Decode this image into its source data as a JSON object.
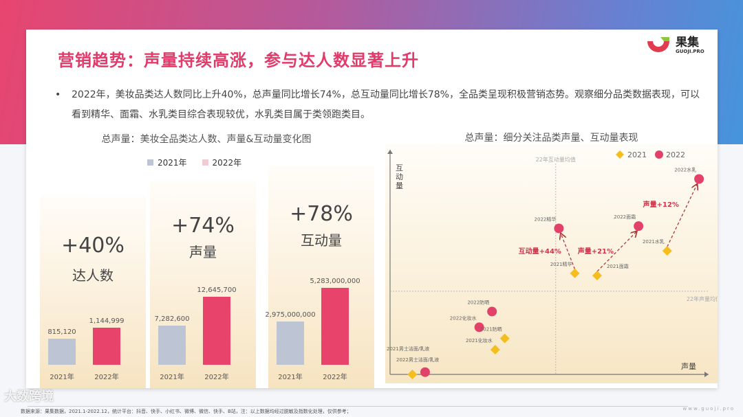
{
  "title": "营销趋势：声量持续高涨，参与达人数显著上升",
  "logo": {
    "name": "果集",
    "sub": "GUOJI.PRO",
    "colors": [
      "#e23b4f",
      "#8cc63f"
    ]
  },
  "bullet": "2022年，美妆品类达人数同比上升40%，总声量同比增长74%，总互动量同比增长78%，全品类呈现积极营销态势。观察细分品类数据表现，可以看到精华、面霜、水乳类目综合表现较优，水乳类目属于类领跑类目。",
  "chart_data": [
    {
      "type": "bar",
      "title": "总声量：美妆全品类达人数、声量&互动量变化图",
      "legend": [
        {
          "name": "2021年",
          "color": "#bdc5d4"
        },
        {
          "name": "2022年",
          "color": "#e8446b"
        }
      ],
      "panels": [
        {
          "growth": "+40%",
          "metric": "达人数",
          "categories": [
            "2021年",
            "2022年"
          ],
          "values": [
            815120,
            1144999
          ],
          "labels": [
            "815,120",
            "1,144,999"
          ]
        },
        {
          "growth": "+74%",
          "metric": "声量",
          "categories": [
            "2021年",
            "2022年"
          ],
          "values": [
            7282600,
            12645700
          ],
          "labels": [
            "7,282,600",
            "12,645,700"
          ]
        },
        {
          "growth": "+78%",
          "metric": "互动量",
          "categories": [
            "2021年",
            "2022年"
          ],
          "values": [
            2975000000,
            5283000000
          ],
          "labels": [
            "2,975,000,000",
            "5,283,000,000"
          ]
        }
      ]
    },
    {
      "type": "scatter",
      "title": "总声量：细分关注品类声量、互动量表现",
      "xlabel": "声量",
      "ylabel": "互动量",
      "xlim": [
        0,
        100
      ],
      "ylim": [
        0,
        100
      ],
      "legend": [
        {
          "name": "2021",
          "marker": "diamond",
          "color": "#f5be1e"
        },
        {
          "name": "2022",
          "marker": "circle",
          "color": "#e2426a"
        }
      ],
      "reference_lines": {
        "x": {
          "value": 52,
          "label": "22年互动量均值"
        },
        "y": {
          "value": 37,
          "label": "22年声量均值"
        }
      },
      "points": [
        {
          "label": "2022精华",
          "year": "2022",
          "x": 53,
          "y": 65
        },
        {
          "label": "2021精华",
          "year": "2021",
          "x": 58,
          "y": 45
        },
        {
          "label": "2021面霜",
          "year": "2021",
          "x": 65,
          "y": 44
        },
        {
          "label": "2022面霜",
          "year": "2022",
          "x": 78,
          "y": 66
        },
        {
          "label": "2021水乳",
          "year": "2021",
          "x": 87,
          "y": 55
        },
        {
          "label": "2022水乳",
          "year": "2022",
          "x": 97,
          "y": 87
        },
        {
          "label": "2022防晒",
          "year": "2022",
          "x": 32,
          "y": 28
        },
        {
          "label": "2022化妆水",
          "year": "2022",
          "x": 28,
          "y": 21
        },
        {
          "label": "2021防晒",
          "year": "2021",
          "x": 36,
          "y": 16
        },
        {
          "label": "2021化妆水",
          "year": "2021",
          "x": 33,
          "y": 11
        },
        {
          "label": "2021男士洁面/乳液",
          "year": "2021",
          "x": 7,
          "y": 0
        },
        {
          "label": "2022男士洁面/乳液",
          "year": "2022",
          "x": 11,
          "y": 1
        }
      ],
      "annotations": [
        {
          "from": "2021精华",
          "to": "2022精华",
          "text": "互动量+44%"
        },
        {
          "from": "2021面霜",
          "to": "2022面霜",
          "text": "声量+21%"
        },
        {
          "from": "2021水乳",
          "to": "2022水乳",
          "text": "声量+12%"
        }
      ]
    }
  ],
  "footer": "数据来源：果集数据，2021.1-2022.12，统计平台：抖音、快手、小红书、微博、微信、快手、B站，注：以上数据均经过脱敏及指数化处理，仅供参考；",
  "watermark": "大数跨境",
  "site": "www.guoji.pro"
}
